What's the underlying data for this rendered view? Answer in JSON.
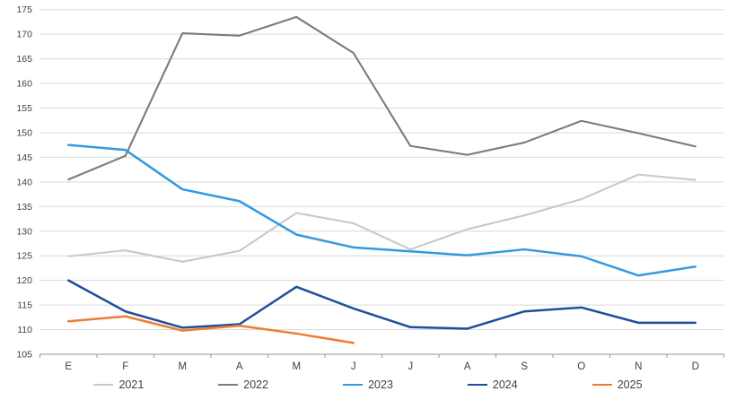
{
  "chart_data": {
    "type": "line",
    "title": "",
    "xlabel": "",
    "ylabel": "",
    "categories": [
      "E",
      "F",
      "M",
      "A",
      "M",
      "J",
      "J",
      "A",
      "S",
      "O",
      "N",
      "D"
    ],
    "y_axis": {
      "min": 105,
      "max": 175,
      "step": 5
    },
    "grid": true,
    "legend_position": "bottom",
    "colors": {
      "gridline": "#d9d9d9",
      "axis": "#a6a6a6",
      "label": "#404040"
    },
    "series": [
      {
        "name": "2021",
        "color": "#c9c9c9",
        "values": [
          124.9,
          126.1,
          123.8,
          126.0,
          133.7,
          131.6,
          126.3,
          130.4,
          133.2,
          136.5,
          141.5,
          140.4
        ]
      },
      {
        "name": "2022",
        "color": "#7c7c7c",
        "values": [
          140.5,
          145.3,
          170.2,
          169.7,
          173.5,
          166.2,
          147.3,
          145.5,
          148.0,
          152.4,
          149.9,
          147.2
        ]
      },
      {
        "name": "2023",
        "color": "#3399e0",
        "values": [
          147.5,
          146.5,
          138.5,
          136.1,
          129.3,
          126.7,
          125.9,
          125.1,
          126.3,
          124.9,
          121.0,
          122.8
        ]
      },
      {
        "name": "2024",
        "color": "#1f4e9d",
        "values": [
          120.0,
          113.7,
          110.4,
          111.1,
          118.7,
          114.3,
          110.5,
          110.2,
          113.7,
          114.5,
          111.4,
          111.4
        ]
      },
      {
        "name": "2025",
        "color": "#ed7d31",
        "values": [
          111.7,
          112.7,
          109.8,
          110.8,
          109.2,
          107.3
        ]
      }
    ]
  }
}
